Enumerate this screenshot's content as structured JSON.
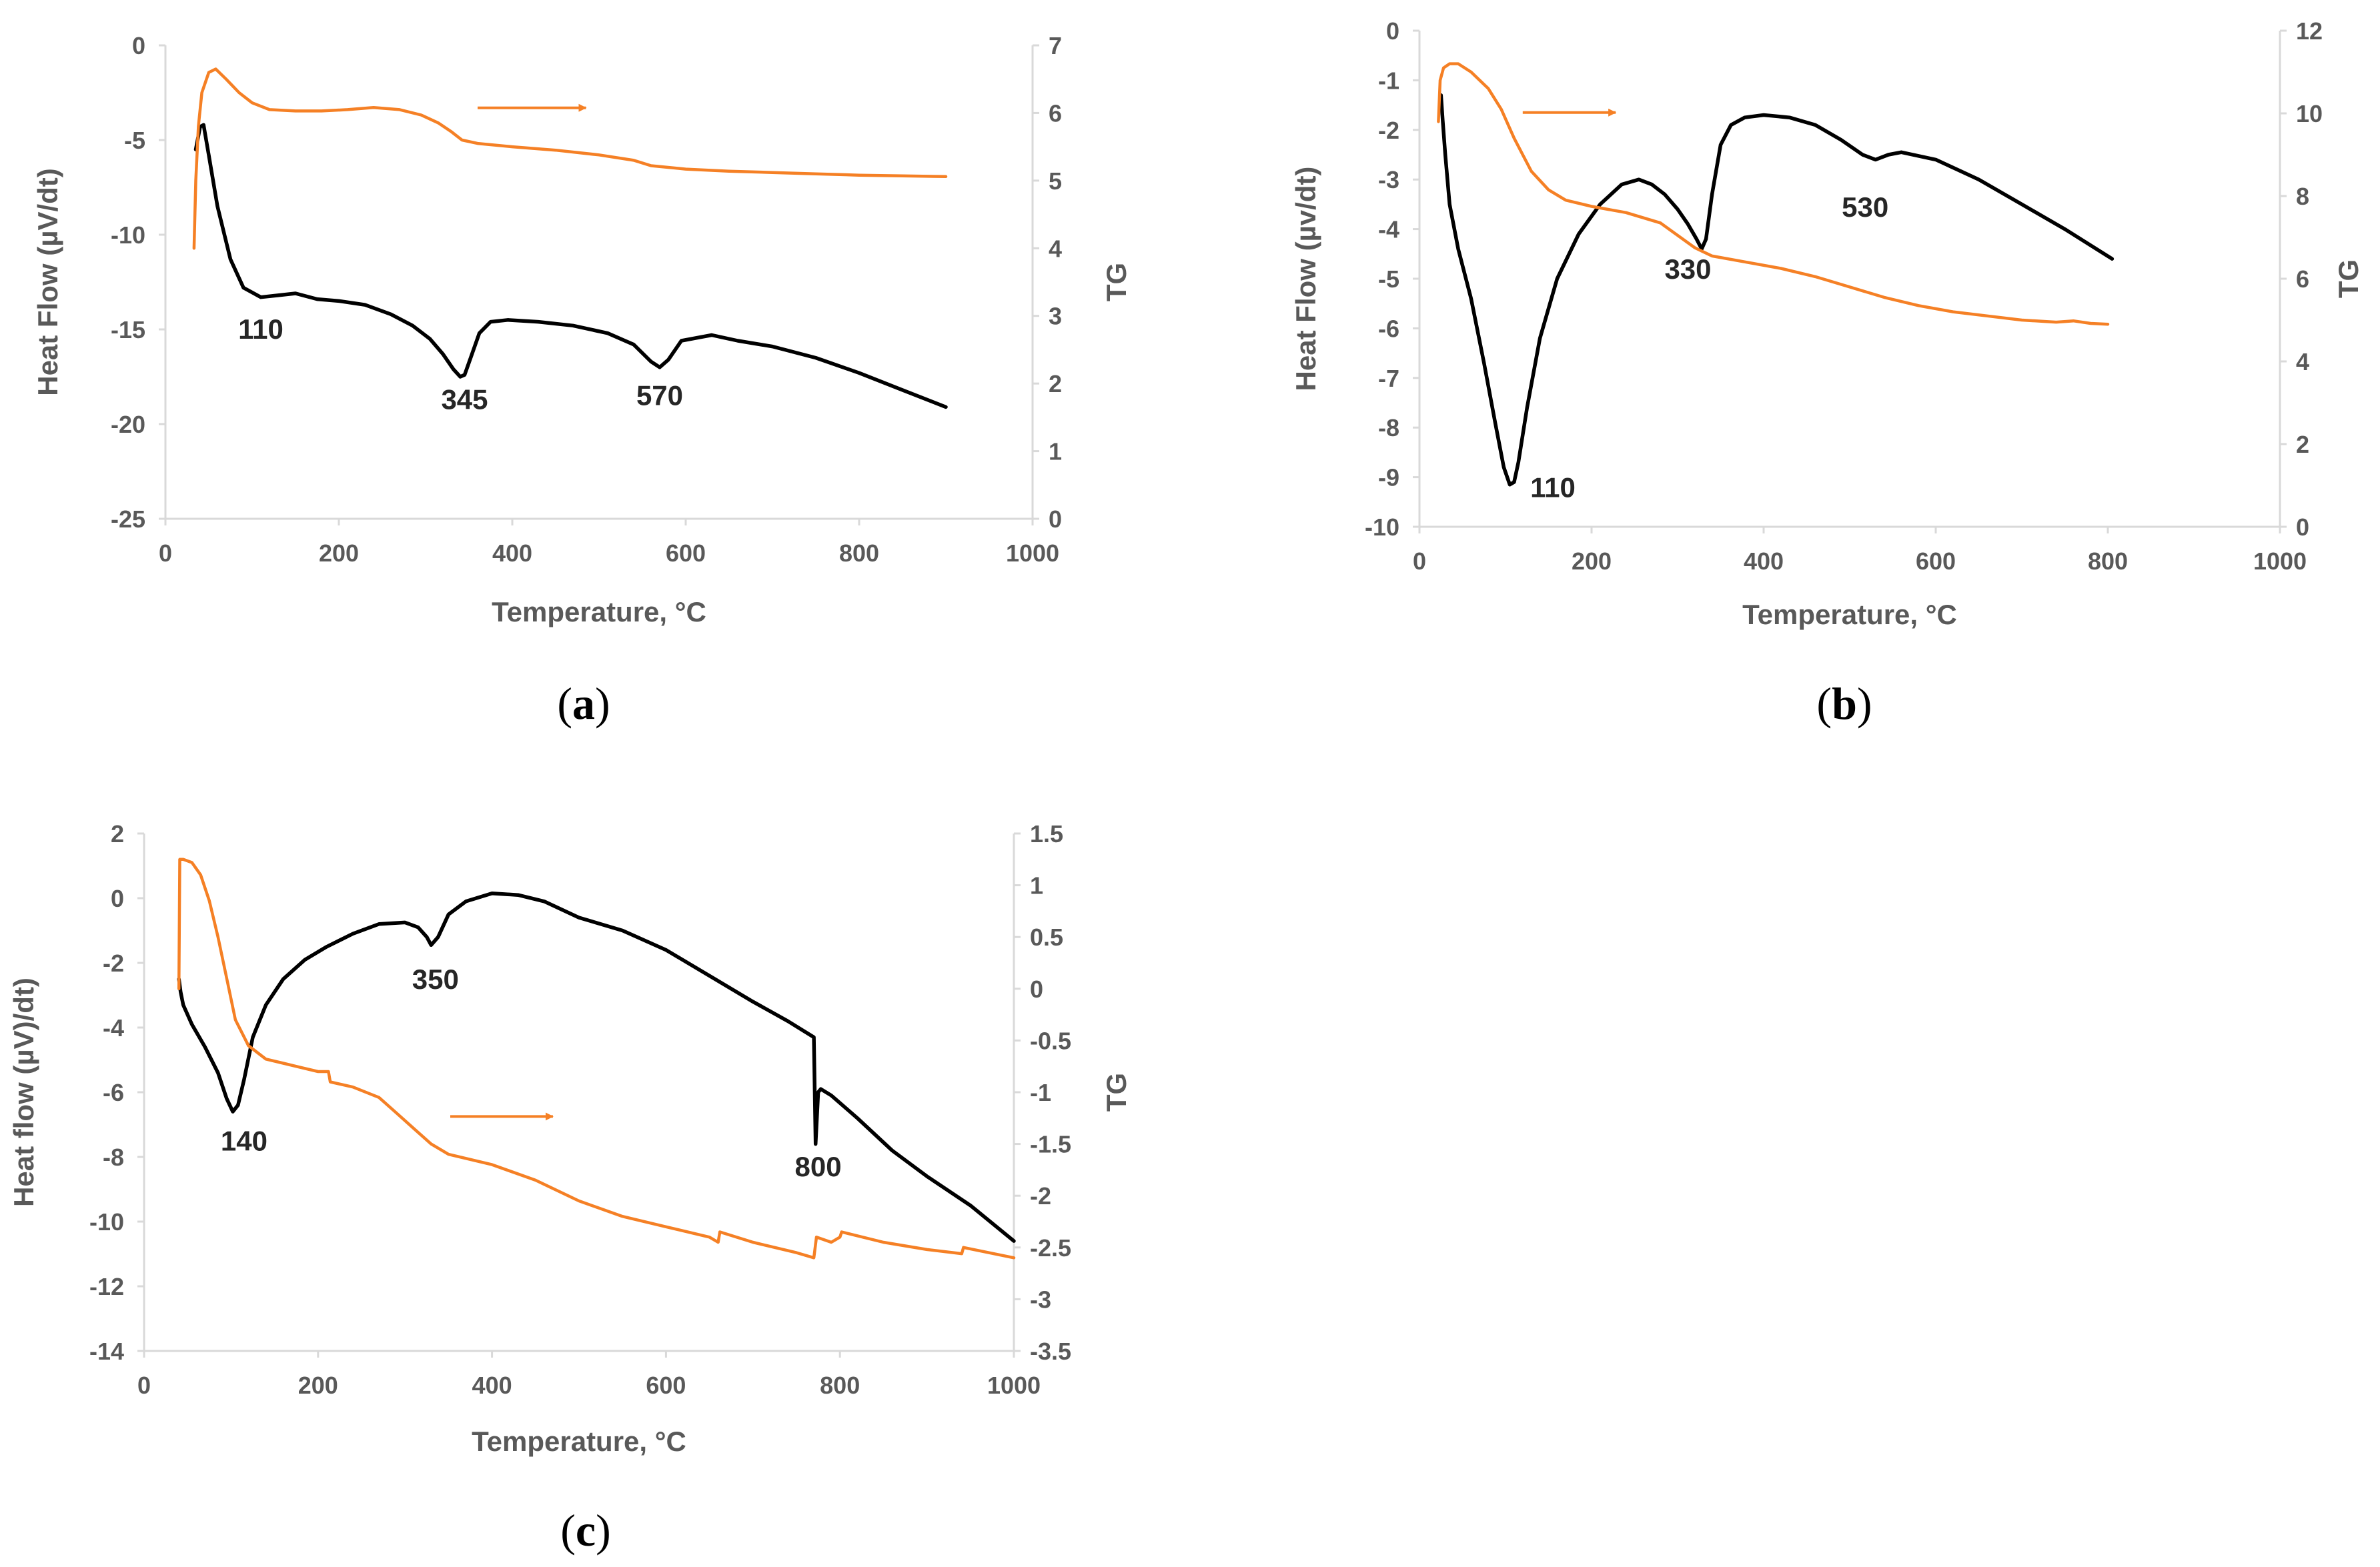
{
  "colors": {
    "hf": "#000000",
    "tg": "#F58025",
    "axis": "#D9D9D9",
    "text": "#595959"
  },
  "chart_data": [
    {
      "id": "a",
      "type": "line",
      "panel_label": {
        "open": "(",
        "letter": "a",
        "close": ")"
      },
      "xlabel": "Temperature, °C",
      "ylabel": "Heat Flow (µV/dt)",
      "y2label": "TG",
      "xlim": [
        0,
        1000
      ],
      "xticks": [
        "0",
        "200",
        "400",
        "600",
        "800",
        "1000"
      ],
      "ylim": [
        -25,
        0
      ],
      "yticks": [
        "0",
        "-5",
        "-10",
        "-15",
        "-20",
        "-25"
      ],
      "y2lim": [
        0,
        7
      ],
      "y2ticks": [
        "7",
        "6",
        "5",
        "4",
        "3",
        "2",
        "1",
        "0"
      ],
      "series": [
        {
          "name": "Heat Flow",
          "axis": "left",
          "x": [
            35,
            40,
            44,
            50,
            60,
            75,
            90,
            110,
            130,
            150,
            175,
            200,
            230,
            260,
            285,
            305,
            320,
            332,
            340,
            345,
            352,
            362,
            375,
            395,
            430,
            470,
            510,
            540,
            560,
            570,
            580,
            595,
            630,
            660,
            700,
            750,
            800,
            850,
            900
          ],
          "y": [
            -5.5,
            -4.3,
            -4.2,
            -5.8,
            -8.5,
            -11.3,
            -12.8,
            -13.3,
            -13.2,
            -13.1,
            -13.4,
            -13.5,
            -13.7,
            -14.2,
            -14.8,
            -15.5,
            -16.3,
            -17.1,
            -17.5,
            -17.4,
            -16.5,
            -15.2,
            -14.6,
            -14.5,
            -14.6,
            -14.8,
            -15.2,
            -15.8,
            -16.7,
            -17.0,
            -16.6,
            -15.6,
            -15.3,
            -15.6,
            -15.9,
            -16.5,
            -17.3,
            -18.2,
            -19.1
          ]
        },
        {
          "name": "TG",
          "axis": "right",
          "x": [
            33,
            35,
            38,
            42,
            50,
            58,
            70,
            85,
            100,
            120,
            150,
            180,
            210,
            240,
            270,
            295,
            315,
            330,
            342,
            360,
            400,
            450,
            500,
            540,
            560,
            600,
            650,
            700,
            750,
            800,
            850,
            900
          ],
          "y": [
            4.0,
            5.0,
            5.8,
            6.3,
            6.6,
            6.65,
            6.5,
            6.3,
            6.15,
            6.05,
            6.03,
            6.03,
            6.05,
            6.08,
            6.05,
            5.97,
            5.85,
            5.72,
            5.6,
            5.55,
            5.5,
            5.45,
            5.38,
            5.3,
            5.22,
            5.17,
            5.14,
            5.12,
            5.1,
            5.08,
            5.07,
            5.06
          ]
        }
      ],
      "annotations": [
        {
          "text": "110",
          "x": 110,
          "y": -15.5
        },
        {
          "text": "345",
          "x": 345,
          "y": -19.2
        },
        {
          "text": "570",
          "x": 570,
          "y": -19.0
        }
      ],
      "arrow": {
        "x1": 360,
        "x2": 485,
        "y": -3.3
      }
    },
    {
      "id": "b",
      "type": "line",
      "panel_label": {
        "open": "(",
        "letter": "b",
        "close": ")"
      },
      "xlabel": "Temperature, °C",
      "ylabel": "Heat Flow (µv/dt)",
      "y2label": "TG",
      "xlim": [
        0,
        1000
      ],
      "xticks": [
        "0",
        "200",
        "400",
        "600",
        "800",
        "1000"
      ],
      "ylim": [
        -10,
        0
      ],
      "yticks": [
        "0",
        "-1",
        "-2",
        "-3",
        "-4",
        "-5",
        "-6",
        "-7",
        "-8",
        "-9",
        "-10"
      ],
      "y2lim": [
        0,
        12
      ],
      "y2ticks": [
        "12",
        "10",
        "8",
        "6",
        "4",
        "2",
        "0"
      ],
      "series": [
        {
          "name": "Heat Flow",
          "axis": "left",
          "x": [
            25,
            27,
            30,
            35,
            45,
            60,
            75,
            88,
            98,
            105,
            110,
            115,
            125,
            140,
            160,
            185,
            210,
            235,
            255,
            270,
            285,
            300,
            312,
            322,
            328,
            333,
            340,
            350,
            362,
            378,
            400,
            430,
            460,
            490,
            515,
            530,
            545,
            560,
            600,
            650,
            700,
            750,
            805
          ],
          "y": [
            -1.3,
            -1.8,
            -2.5,
            -3.5,
            -4.4,
            -5.4,
            -6.7,
            -7.9,
            -8.8,
            -9.15,
            -9.1,
            -8.7,
            -7.6,
            -6.2,
            -5.0,
            -4.1,
            -3.5,
            -3.1,
            -3.0,
            -3.1,
            -3.3,
            -3.6,
            -3.9,
            -4.2,
            -4.4,
            -4.2,
            -3.3,
            -2.3,
            -1.9,
            -1.75,
            -1.7,
            -1.75,
            -1.9,
            -2.2,
            -2.5,
            -2.6,
            -2.5,
            -2.45,
            -2.6,
            -3.0,
            -3.5,
            -4.0,
            -4.6
          ]
        },
        {
          "name": "TG",
          "axis": "right",
          "x": [
            22,
            24,
            28,
            35,
            45,
            60,
            80,
            95,
            110,
            130,
            150,
            170,
            200,
            240,
            280,
            300,
            320,
            340,
            380,
            420,
            460,
            500,
            540,
            580,
            620,
            660,
            700,
            740,
            760,
            780,
            800
          ],
          "y": [
            9.8,
            10.8,
            11.1,
            11.2,
            11.2,
            11.0,
            10.6,
            10.1,
            9.4,
            8.6,
            8.15,
            7.9,
            7.75,
            7.6,
            7.35,
            7.05,
            6.75,
            6.55,
            6.4,
            6.25,
            6.05,
            5.8,
            5.55,
            5.35,
            5.2,
            5.1,
            5.0,
            4.95,
            4.98,
            4.92,
            4.9
          ]
        }
      ],
      "annotations": [
        {
          "text": "110",
          "x": 155,
          "y": -9.4
        },
        {
          "text": "330",
          "x": 312,
          "y": -5.0
        },
        {
          "text": "530",
          "x": 518,
          "y": -3.75
        }
      ],
      "arrow": {
        "x1": 120,
        "x2": 228,
        "y": -1.65
      }
    },
    {
      "id": "c",
      "type": "line",
      "panel_label": {
        "open": "(",
        "letter": "c",
        "close": ")"
      },
      "xlabel": "Temperature, °C",
      "ylabel": "Heat flow (µV)/dt)",
      "y2label": "TG",
      "xlim": [
        0,
        1000
      ],
      "xticks": [
        "0",
        "200",
        "400",
        "600",
        "800",
        "1000"
      ],
      "ylim": [
        -14,
        2
      ],
      "yticks": [
        "2",
        "0",
        "-2",
        "-4",
        "-6",
        "-8",
        "-10",
        "-12",
        "-14"
      ],
      "y2lim": [
        -3.5,
        1.5
      ],
      "y2ticks": [
        "1.5",
        "1",
        "0.5",
        "0",
        "-0.5",
        "-1",
        "-1.5",
        "-2",
        "-2.5",
        "-3",
        "-3.5"
      ],
      "series": [
        {
          "name": "Heat Flow",
          "axis": "left",
          "x": [
            40,
            42,
            45,
            55,
            70,
            85,
            95,
            102,
            108,
            115,
            125,
            140,
            160,
            185,
            210,
            240,
            270,
            300,
            315,
            325,
            330,
            338,
            350,
            370,
            400,
            430,
            460,
            500,
            550,
            600,
            650,
            700,
            740,
            770,
            772,
            775,
            778,
            790,
            820,
            860,
            900,
            950,
            1000
          ],
          "y": [
            -2.5,
            -2.9,
            -3.3,
            -3.9,
            -4.6,
            -5.4,
            -6.2,
            -6.6,
            -6.4,
            -5.6,
            -4.3,
            -3.3,
            -2.5,
            -1.9,
            -1.5,
            -1.1,
            -0.8,
            -0.75,
            -0.9,
            -1.2,
            -1.45,
            -1.2,
            -0.5,
            -0.1,
            0.15,
            0.1,
            -0.1,
            -0.6,
            -1.0,
            -1.6,
            -2.4,
            -3.2,
            -3.8,
            -4.3,
            -7.6,
            -6.0,
            -5.9,
            -6.1,
            -6.8,
            -7.8,
            -8.6,
            -9.5,
            -10.6
          ]
        },
        {
          "name": "TG",
          "axis": "right",
          "x": [
            40,
            41,
            45,
            55,
            65,
            75,
            85,
            95,
            105,
            120,
            140,
            160,
            180,
            200,
            212,
            214,
            240,
            270,
            290,
            310,
            330,
            350,
            400,
            450,
            500,
            550,
            600,
            650,
            660,
            662,
            700,
            750,
            770,
            773,
            790,
            800,
            802,
            850,
            900,
            940,
            942,
            1000
          ],
          "y": [
            0.0,
            1.25,
            1.25,
            1.22,
            1.1,
            0.85,
            0.5,
            0.1,
            -0.3,
            -0.55,
            -0.68,
            -0.72,
            -0.76,
            -0.8,
            -0.8,
            -0.9,
            -0.95,
            -1.05,
            -1.2,
            -1.35,
            -1.5,
            -1.6,
            -1.7,
            -1.85,
            -2.05,
            -2.2,
            -2.3,
            -2.4,
            -2.45,
            -2.35,
            -2.45,
            -2.55,
            -2.6,
            -2.4,
            -2.45,
            -2.4,
            -2.35,
            -2.45,
            -2.52,
            -2.56,
            -2.5,
            -2.6
          ]
        }
      ],
      "annotations": [
        {
          "text": "140",
          "x": 115,
          "y": -7.8
        },
        {
          "text": "350",
          "x": 335,
          "y": -2.8
        },
        {
          "text": "800",
          "x": 775,
          "y": -8.6
        }
      ],
      "arrow": {
        "x1": 352,
        "x2": 470,
        "y": -6.75
      }
    }
  ]
}
